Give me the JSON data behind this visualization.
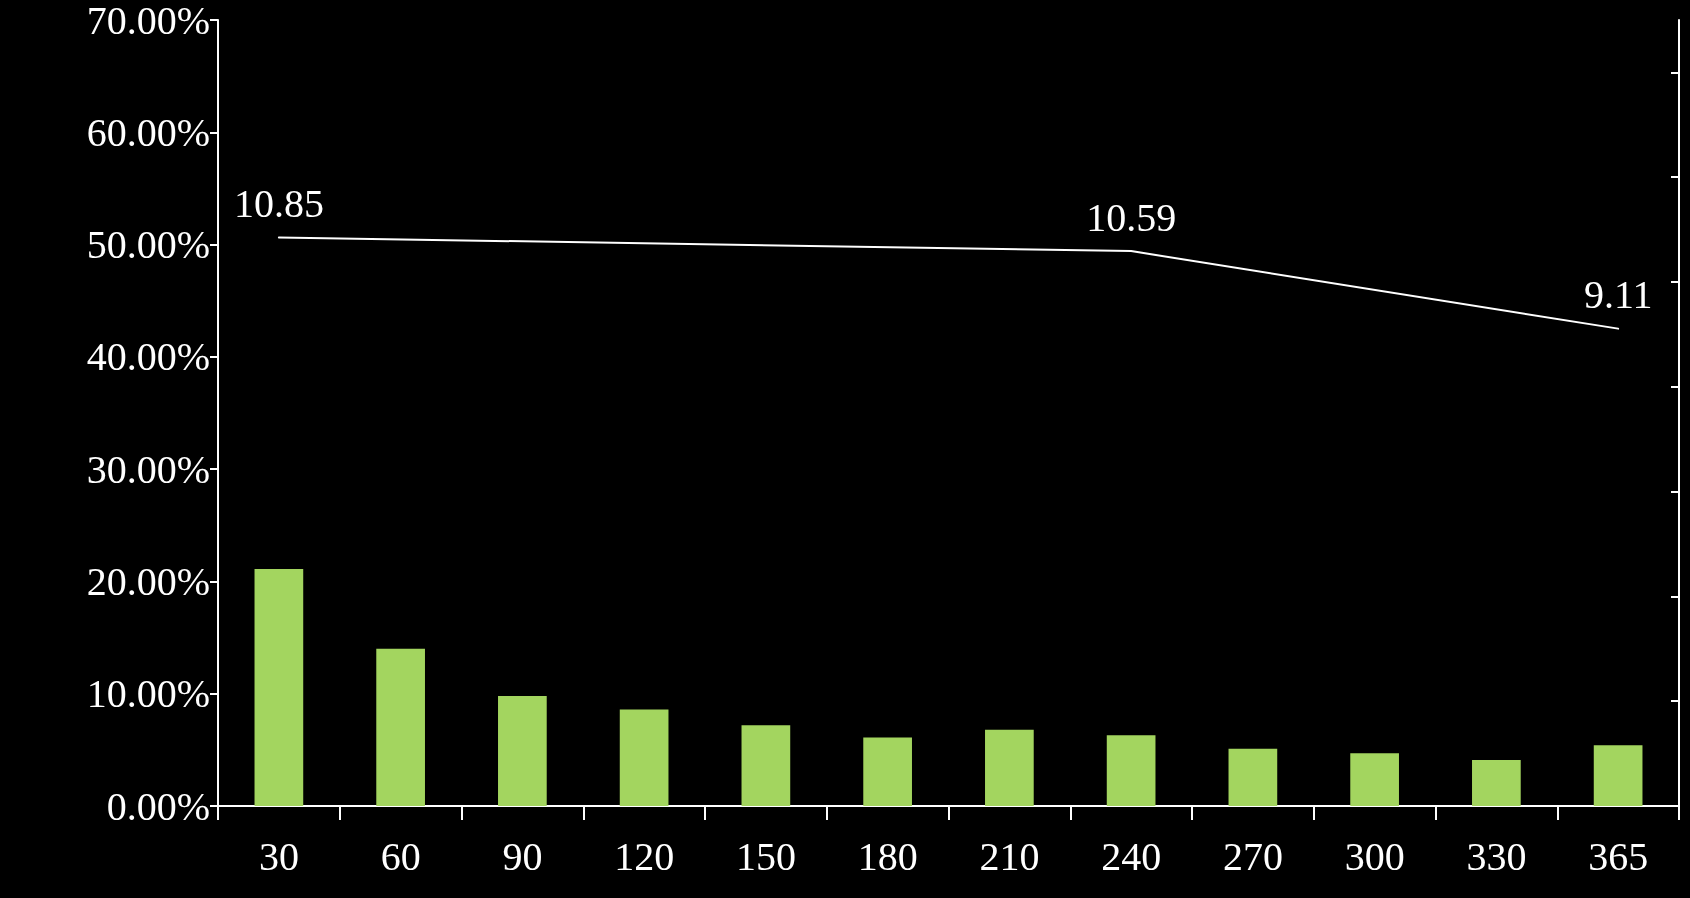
{
  "chart_data": {
    "type": "bar",
    "categories": [
      "30",
      "60",
      "90",
      "120",
      "150",
      "180",
      "210",
      "240",
      "270",
      "300",
      "330",
      "365"
    ],
    "series": [
      {
        "color": "#a3d55f",
        "values": [
          21.1,
          14.0,
          9.8,
          8.6,
          7.2,
          6.1,
          6.8,
          6.3,
          5.1,
          4.7,
          4.1,
          5.4
        ]
      },
      {
        "type": "line",
        "axis": "y2",
        "color": "#ffffff",
        "values": [
          10.85,
          null,
          null,
          null,
          null,
          null,
          null,
          10.59,
          null,
          null,
          null,
          9.11
        ],
        "value_labels": [
          "10.85",
          null,
          null,
          null,
          null,
          null,
          null,
          "10.59",
          null,
          null,
          null,
          "9.11"
        ]
      }
    ],
    "ylim": [
      0,
      70
    ],
    "yticks": [
      {
        "value": 0,
        "label": "0.00%"
      },
      {
        "value": 10,
        "label": "10.00%"
      },
      {
        "value": 20,
        "label": "20.00%"
      },
      {
        "value": 30,
        "label": "30.00%"
      },
      {
        "value": 40,
        "label": "40.00%"
      },
      {
        "value": 50,
        "label": "50.00%"
      },
      {
        "value": 60,
        "label": "60.00%"
      },
      {
        "value": 70,
        "label": "70.00%"
      }
    ],
    "y2lim": [
      0,
      15
    ],
    "y2ticks": [
      {
        "value": 0,
        "label": null
      },
      {
        "value": 2,
        "label": null
      },
      {
        "value": 4,
        "label": null
      },
      {
        "value": 6,
        "label": null
      },
      {
        "value": 8,
        "label": null
      },
      {
        "value": 10,
        "label": null
      },
      {
        "value": 12,
        "label": null
      },
      {
        "value": 14,
        "label": null
      }
    ],
    "grid": false,
    "marker": "none",
    "line_style": "solid"
  }
}
